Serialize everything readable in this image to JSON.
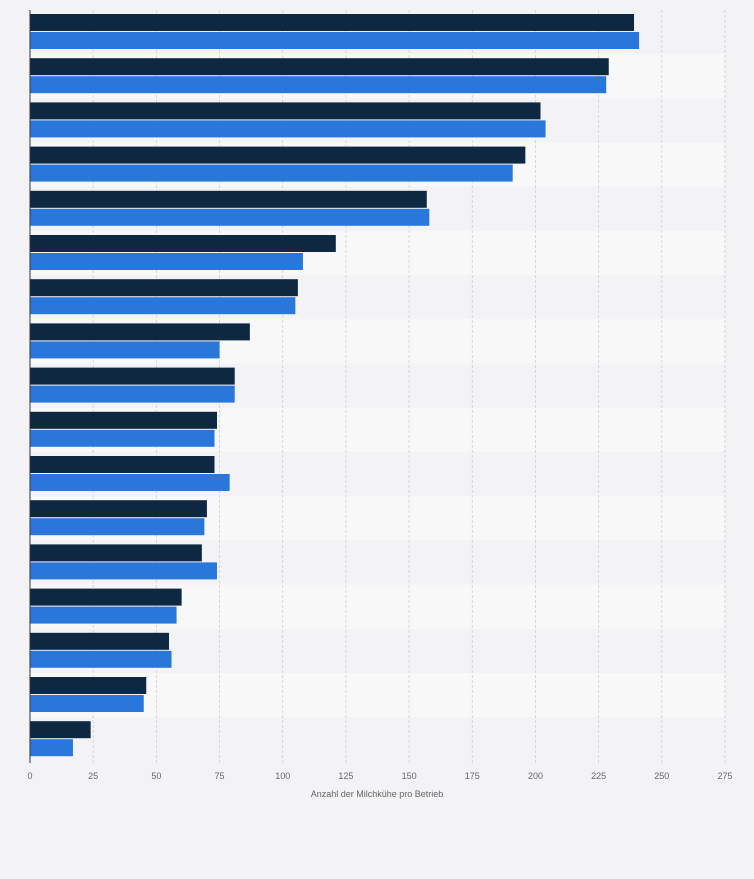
{
  "chart_data": {
    "type": "bar",
    "orientation": "horizontal",
    "title": "",
    "xlabel": "Anzahl der Milchkühe pro Betrieb",
    "ylabel": "",
    "xlim": [
      0,
      275
    ],
    "x_ticks": [
      0,
      25,
      50,
      75,
      100,
      125,
      150,
      175,
      200,
      225,
      250,
      275
    ],
    "grid": "vertical dashed",
    "categories": [
      "",
      "",
      "",
      "",
      "",
      "",
      "",
      "",
      "",
      "",
      "",
      "",
      "",
      "",
      "",
      "",
      ""
    ],
    "series": [
      {
        "color": "#0f2841",
        "values": [
          239,
          229,
          202,
          196,
          157,
          121,
          106,
          87,
          81,
          74,
          73,
          70,
          68,
          60,
          55,
          46,
          24
        ]
      },
      {
        "color": "#2a77dc",
        "values": [
          241,
          228,
          204,
          191,
          158,
          108,
          105,
          75,
          81,
          73,
          79,
          69,
          74,
          58,
          56,
          45,
          17
        ]
      }
    ],
    "colors": {
      "background": "#f3f3f5",
      "band_light": "#f8f8f9",
      "band_dark": "#f3f3f5",
      "grid": "#cfcfd4",
      "axis": "#333333"
    }
  }
}
